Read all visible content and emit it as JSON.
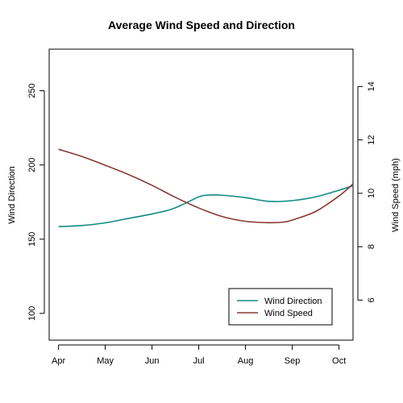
{
  "chart_data": {
    "type": "line",
    "title": "Average Wind Speed and Direction",
    "x_tick_labels": [
      "Apr",
      "May",
      "Jun",
      "Jul",
      "Aug",
      "Sep",
      "Oct"
    ],
    "x_domain": [
      -0.2,
      6.3
    ],
    "y_left": {
      "label": "Wind Direction",
      "range": [
        82,
        278
      ],
      "ticks": [
        100,
        150,
        200,
        250
      ]
    },
    "y_right": {
      "label": "Wind Speed (mph)",
      "range": [
        4.5,
        15.4
      ],
      "ticks": [
        6,
        8,
        10,
        12,
        14
      ]
    },
    "series": [
      {
        "name": "Wind Direction",
        "axis": "left",
        "color": "#118a84",
        "x": [
          0,
          0.5,
          1,
          1.5,
          2,
          2.4,
          2.7,
          3,
          3.2,
          3.5,
          4,
          4.5,
          5,
          5.5,
          6,
          6.3
        ],
        "values": [
          158.5,
          159.2,
          161,
          164,
          167,
          170,
          174,
          178.5,
          179.7,
          179.6,
          178,
          175.5,
          176,
          178.5,
          183,
          186
        ]
      },
      {
        "name": "Wind Speed",
        "axis": "right",
        "color": "#8b3a31",
        "x": [
          0,
          0.5,
          1,
          1.5,
          2,
          2.5,
          3,
          3.5,
          4,
          4.5,
          4.8,
          5,
          5.5,
          6,
          6.3
        ],
        "values": [
          11.65,
          11.38,
          11.05,
          10.7,
          10.3,
          9.85,
          9.45,
          9.13,
          8.95,
          8.9,
          8.92,
          9.0,
          9.32,
          9.9,
          10.35
        ]
      }
    ],
    "legend": {
      "position": "bottom-right",
      "entries": [
        "Wind Direction",
        "Wind Speed"
      ]
    }
  }
}
